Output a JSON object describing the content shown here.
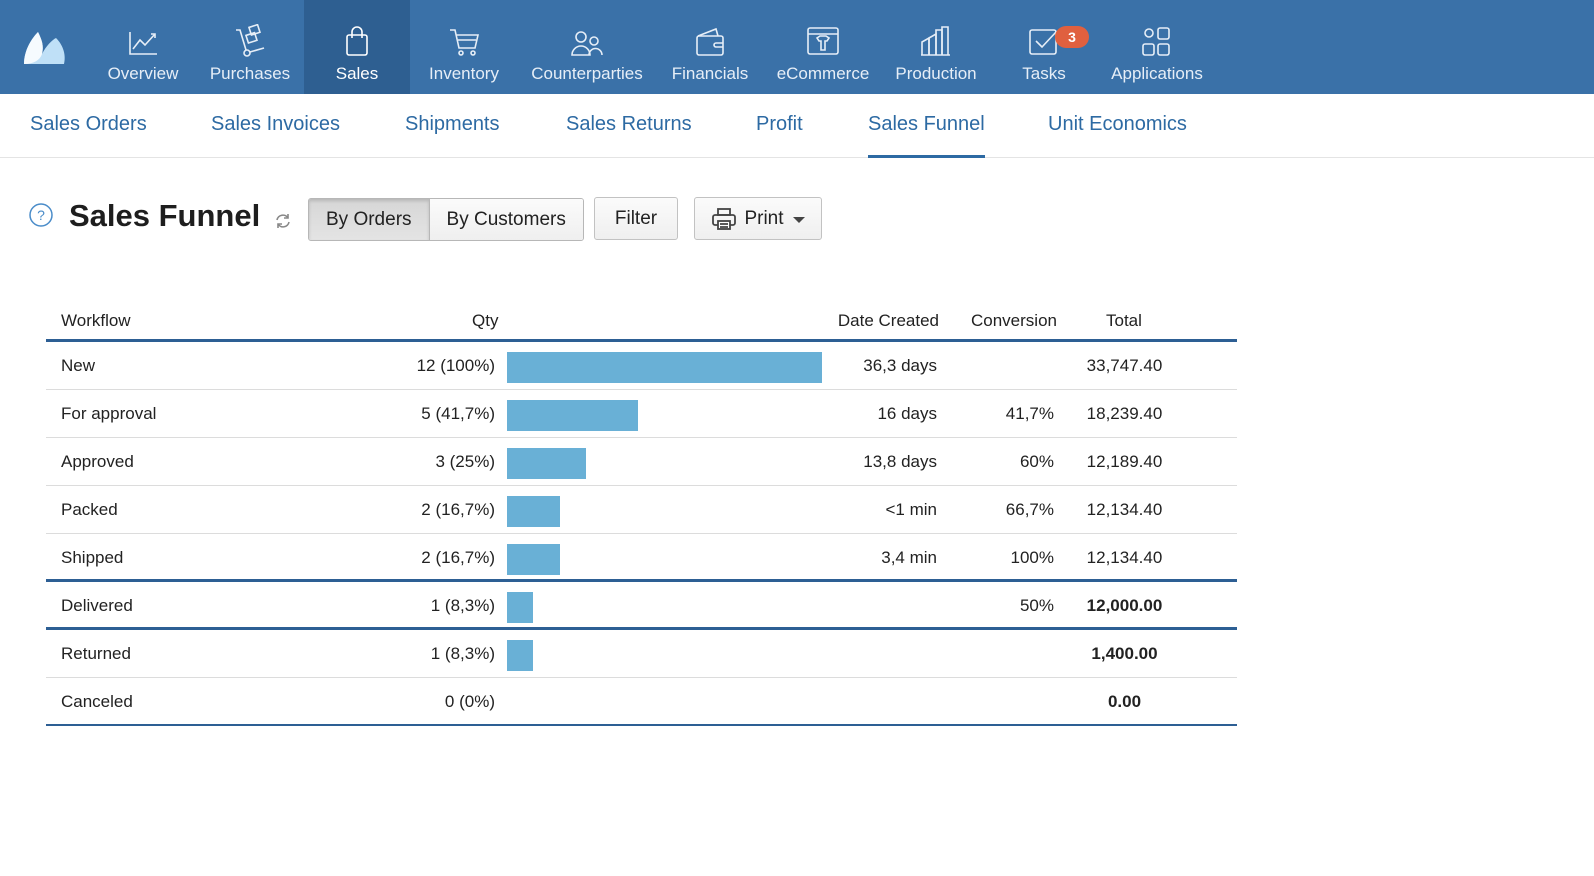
{
  "nav": {
    "items": [
      {
        "label": "Overview",
        "icon": "chart-line-icon"
      },
      {
        "label": "Purchases",
        "icon": "hand-truck-icon"
      },
      {
        "label": "Sales",
        "icon": "shopping-bag-icon"
      },
      {
        "label": "Inventory",
        "icon": "cart-icon"
      },
      {
        "label": "Counterparties",
        "icon": "people-icon"
      },
      {
        "label": "Financials",
        "icon": "wallet-icon"
      },
      {
        "label": "eCommerce",
        "icon": "storefront-icon"
      },
      {
        "label": "Production",
        "icon": "factory-icon"
      },
      {
        "label": "Tasks",
        "icon": "checkbox-icon",
        "badge": "3"
      },
      {
        "label": "Applications",
        "icon": "apps-grid-icon"
      }
    ],
    "active": "Sales"
  },
  "subnav": {
    "items": [
      "Sales Orders",
      "Sales Invoices",
      "Shipments",
      "Sales Returns",
      "Profit",
      "Sales Funnel",
      "Unit Economics"
    ],
    "active": "Sales Funnel"
  },
  "header": {
    "title": "Sales Funnel",
    "toggle": [
      "By Orders",
      "By Customers"
    ],
    "toggle_active": "By Orders",
    "filter_label": "Filter",
    "print_label": "Print"
  },
  "table": {
    "columns": {
      "workflow": "Workflow",
      "qty": "Qty",
      "date_created": "Date Created",
      "conversion": "Conversion",
      "total": "Total"
    },
    "bar_color": "#69b0d6",
    "rows": [
      {
        "workflow": "New",
        "qty": "12 (100%)",
        "share": 1.0,
        "date_created": "36,3 days",
        "conversion": "",
        "total": "33,747.40",
        "bold": false
      },
      {
        "workflow": "For approval",
        "qty": "5 (41,7%)",
        "share": 0.417,
        "date_created": "16 days",
        "conversion": "41,7%",
        "total": "18,239.40",
        "bold": false
      },
      {
        "workflow": "Approved",
        "qty": "3 (25%)",
        "share": 0.25,
        "date_created": "13,8 days",
        "conversion": "60%",
        "total": "12,189.40",
        "bold": false
      },
      {
        "workflow": "Packed",
        "qty": "2 (16,7%)",
        "share": 0.167,
        "date_created": "<1 min",
        "conversion": "66,7%",
        "total": "12,134.40",
        "bold": false
      },
      {
        "workflow": "Shipped",
        "qty": "2 (16,7%)",
        "share": 0.167,
        "date_created": "3,4 min",
        "conversion": "100%",
        "total": "12,134.40",
        "bold": false
      },
      {
        "workflow": "Delivered",
        "qty": "1 (8,3%)",
        "share": 0.083,
        "date_created": "",
        "conversion": "50%",
        "total": "12,000.00",
        "bold": true
      },
      {
        "workflow": "Returned",
        "qty": "1 (8,3%)",
        "share": 0.083,
        "date_created": "",
        "conversion": "",
        "total": "1,400.00",
        "bold": true
      },
      {
        "workflow": "Canceled",
        "qty": "0 (0%)",
        "share": 0.0,
        "date_created": "",
        "conversion": "",
        "total": "0.00",
        "bold": true
      }
    ]
  }
}
